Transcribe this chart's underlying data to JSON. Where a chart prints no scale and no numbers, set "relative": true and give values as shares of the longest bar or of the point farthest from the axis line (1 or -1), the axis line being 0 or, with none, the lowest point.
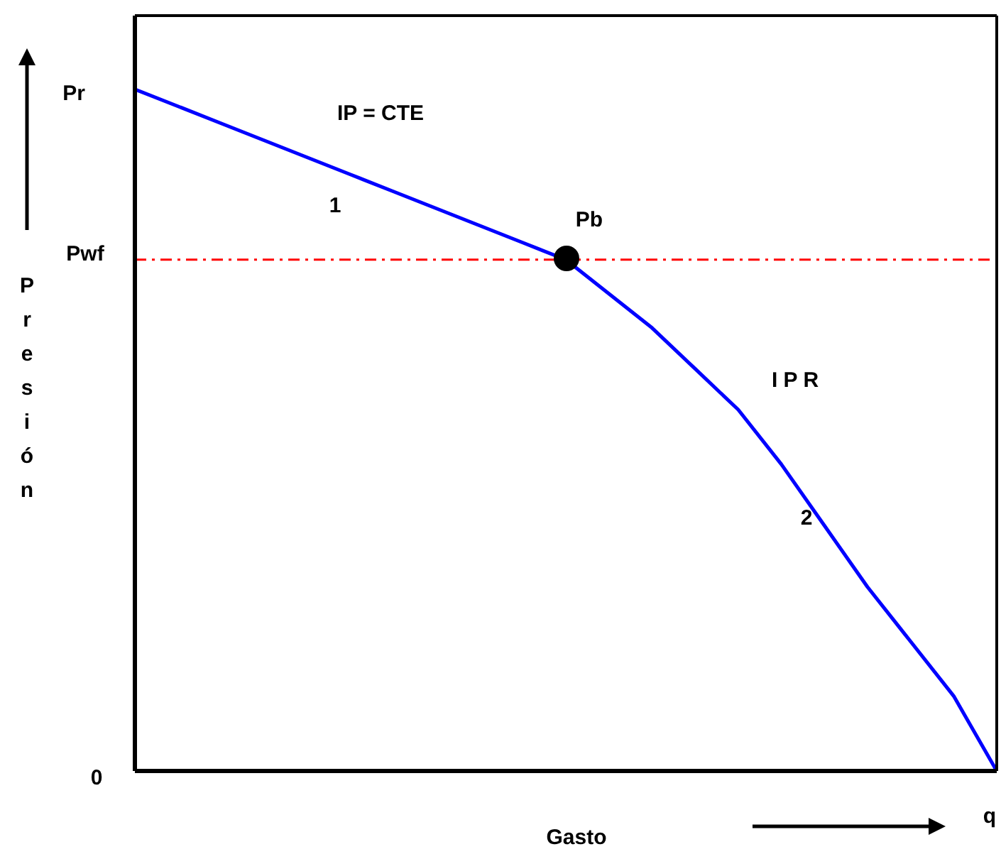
{
  "chart_data": {
    "type": "line",
    "relative": true,
    "xlabel": "Gasto",
    "ylabel": "Presión",
    "categories": [
      null,
      null,
      null,
      null,
      null,
      null,
      null,
      null,
      null,
      null,
      null,
      null,
      null,
      null,
      null,
      null,
      null,
      null,
      null,
      null,
      null
    ],
    "series": [
      {
        "color": "#0000ff",
        "marker": "none",
        "values": [
          1,
          0.975,
          0.95,
          0.925,
          0.9,
          0.875,
          0.85,
          0.825,
          0.8,
          0.775,
          0.75,
          0.7,
          0.65,
          0.59,
          0.53,
          0.45,
          0.36,
          0.27,
          0.19,
          0.11,
          0
        ]
      }
    ],
    "ref_lines": [
      {
        "axis": "y",
        "value": 0.75,
        "label": "Pwf",
        "color": "#ff0000",
        "line_style": "dashed"
      }
    ],
    "annotations": [
      "Pr",
      "0",
      "IP = CTE",
      "1",
      "Pb",
      "I P R",
      "2",
      "q"
    ]
  }
}
